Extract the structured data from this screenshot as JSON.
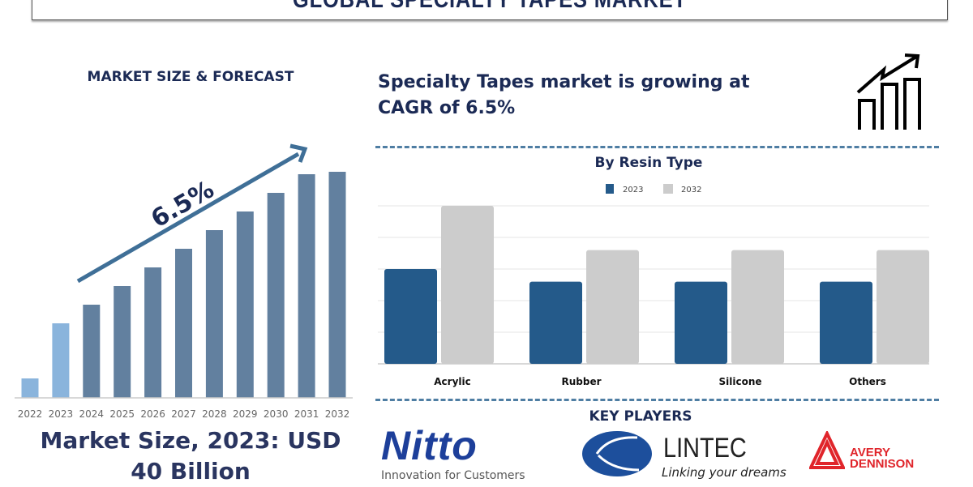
{
  "title": "GLOBAL SPECIALTY TAPES MARKET",
  "left_panel": {
    "heading": "MARKET SIZE & FORECAST",
    "cagr_label": "6.5%",
    "market_size_line1": "Market Size, 2023: USD",
    "market_size_line2": "40 Billion"
  },
  "right_panel": {
    "headline_line1": "Specialty Tapes market is growing at",
    "headline_line2": "CAGR of 6.5%",
    "icon": "growth-chart-icon",
    "key_players_heading": "KEY PLAYERS",
    "key_players": [
      {
        "name": "Nitto",
        "tagline": "Innovation for Customers"
      },
      {
        "name": "LINTEC",
        "tagline": "Linking your dreams"
      },
      {
        "name": "AVERY DENNISON",
        "line1": "AVERY",
        "line2": "DENNISON"
      }
    ]
  },
  "chart_data": [
    {
      "type": "bar",
      "title": "",
      "categories": [
        "2022",
        "2023",
        "2024",
        "2025",
        "2026",
        "2027",
        "2028",
        "2029",
        "2030",
        "2031",
        "2032"
      ],
      "values": [
        24,
        92,
        115,
        138,
        161,
        184,
        207,
        230,
        253,
        276,
        279
      ],
      "value_units": "relative (no axis values printed)",
      "highlight_categories": [
        "2022",
        "2023"
      ],
      "colors": {
        "historical": "#8ab4dc",
        "forecast": "#62809f"
      },
      "annotation": "6.5%",
      "grid": false
    },
    {
      "type": "bar",
      "title": "By Resin Type",
      "categories": [
        "Acrylic",
        "Rubber",
        "Silicone",
        "Others"
      ],
      "series": [
        {
          "name": "2023",
          "values": [
            3.0,
            2.6,
            2.6,
            2.6
          ],
          "color": "#245a8a"
        },
        {
          "name": "2032",
          "values": [
            5.0,
            3.6,
            3.6,
            3.6
          ],
          "color": "#cccccc"
        }
      ],
      "ylim": [
        0,
        5
      ],
      "value_units": "relative (no axis values printed)",
      "grid": true,
      "legend": "top"
    }
  ]
}
